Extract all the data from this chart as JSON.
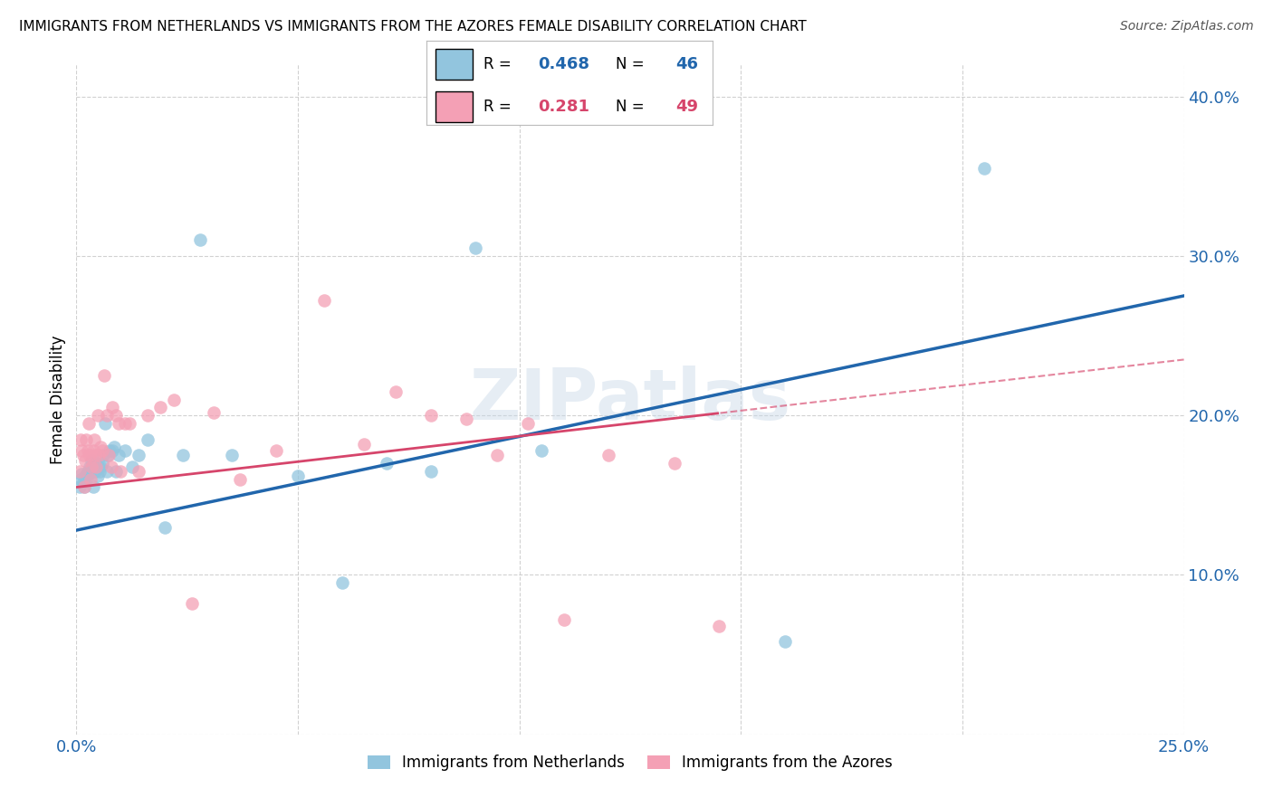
{
  "title": "IMMIGRANTS FROM NETHERLANDS VS IMMIGRANTS FROM THE AZORES FEMALE DISABILITY CORRELATION CHART",
  "source": "Source: ZipAtlas.com",
  "ylabel": "Female Disability",
  "xlim": [
    0.0,
    0.25
  ],
  "ylim": [
    0.0,
    0.42
  ],
  "xticks": [
    0.0,
    0.05,
    0.1,
    0.15,
    0.2,
    0.25
  ],
  "yticks": [
    0.0,
    0.1,
    0.2,
    0.3,
    0.4
  ],
  "netherlands_color": "#92c5de",
  "azores_color": "#f4a0b5",
  "netherlands_line_color": "#2166ac",
  "azores_line_color": "#d6456b",
  "watermark": "ZIPatlas",
  "nl_R": "0.468",
  "nl_N": "46",
  "az_R": "0.281",
  "az_N": "49",
  "netherlands_x": [
    0.0008,
    0.001,
    0.0012,
    0.0015,
    0.0018,
    0.002,
    0.0022,
    0.0025,
    0.0028,
    0.003,
    0.0032,
    0.0035,
    0.0038,
    0.004,
    0.0042,
    0.0045,
    0.0048,
    0.005,
    0.0052,
    0.0055,
    0.0058,
    0.006,
    0.0065,
    0.0068,
    0.007,
    0.0075,
    0.008,
    0.0085,
    0.009,
    0.0095,
    0.011,
    0.0125,
    0.014,
    0.016,
    0.02,
    0.024,
    0.028,
    0.035,
    0.05,
    0.06,
    0.07,
    0.08,
    0.09,
    0.105,
    0.16,
    0.205
  ],
  "netherlands_y": [
    0.155,
    0.16,
    0.163,
    0.158,
    0.155,
    0.162,
    0.16,
    0.165,
    0.163,
    0.168,
    0.165,
    0.172,
    0.155,
    0.168,
    0.165,
    0.17,
    0.162,
    0.168,
    0.165,
    0.168,
    0.17,
    0.175,
    0.195,
    0.165,
    0.175,
    0.178,
    0.178,
    0.18,
    0.165,
    0.175,
    0.178,
    0.168,
    0.175,
    0.185,
    0.13,
    0.175,
    0.31,
    0.175,
    0.162,
    0.095,
    0.17,
    0.165,
    0.305,
    0.178,
    0.058,
    0.355
  ],
  "azores_x": [
    0.0008,
    0.001,
    0.0012,
    0.0015,
    0.0018,
    0.002,
    0.0022,
    0.0025,
    0.0028,
    0.003,
    0.0032,
    0.0035,
    0.0038,
    0.004,
    0.0042,
    0.0045,
    0.0048,
    0.005,
    0.0055,
    0.0058,
    0.0062,
    0.0068,
    0.0072,
    0.0078,
    0.0082,
    0.009,
    0.0095,
    0.01,
    0.011,
    0.012,
    0.014,
    0.016,
    0.019,
    0.022,
    0.026,
    0.031,
    0.037,
    0.045,
    0.056,
    0.065,
    0.072,
    0.08,
    0.088,
    0.095,
    0.102,
    0.11,
    0.12,
    0.135,
    0.145
  ],
  "azores_y": [
    0.165,
    0.185,
    0.178,
    0.175,
    0.155,
    0.172,
    0.185,
    0.178,
    0.195,
    0.175,
    0.16,
    0.168,
    0.178,
    0.185,
    0.175,
    0.168,
    0.2,
    0.175,
    0.18,
    0.178,
    0.225,
    0.2,
    0.175,
    0.168,
    0.205,
    0.2,
    0.195,
    0.165,
    0.195,
    0.195,
    0.165,
    0.2,
    0.205,
    0.21,
    0.082,
    0.202,
    0.16,
    0.178,
    0.272,
    0.182,
    0.215,
    0.2,
    0.198,
    0.175,
    0.195,
    0.072,
    0.175,
    0.17,
    0.068
  ]
}
